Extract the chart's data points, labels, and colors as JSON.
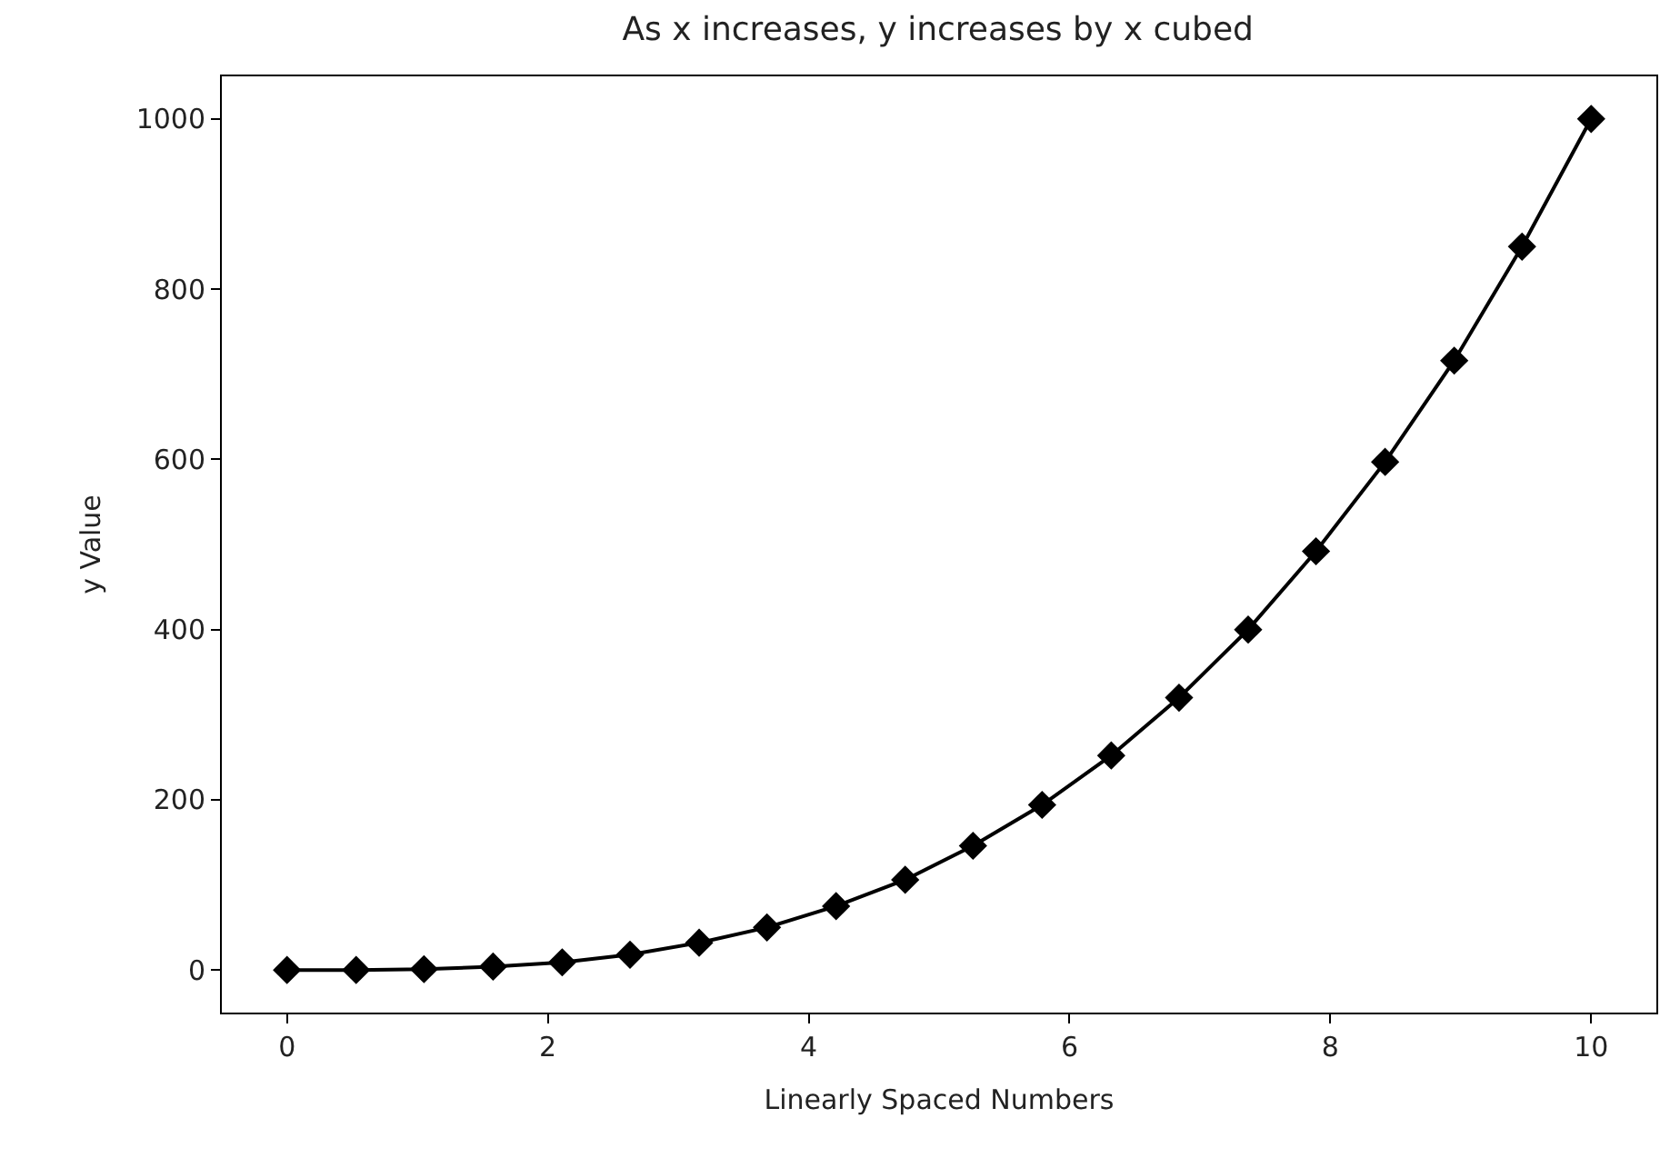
{
  "chart_data": {
    "type": "line",
    "title": "As x increases, y increases by x cubed",
    "xlabel": "Linearly Spaced Numbers",
    "ylabel": "y Value",
    "x": [
      0,
      0.53,
      1.05,
      1.58,
      2.11,
      2.63,
      3.16,
      3.68,
      4.21,
      4.74,
      5.26,
      5.79,
      6.32,
      6.84,
      7.37,
      7.89,
      8.42,
      8.95,
      9.47,
      10
    ],
    "series": [
      {
        "color": "#000000",
        "values": [
          0,
          0,
          1,
          4,
          9,
          18,
          32,
          50,
          75,
          106,
          146,
          194,
          252,
          320,
          400,
          492,
          597,
          716,
          850,
          1000
        ]
      }
    ],
    "marker": "diamond",
    "line_style": "solid",
    "legend": false,
    "xlim": [
      -0.5,
      10.5
    ],
    "xticks": [
      0,
      2,
      4,
      6,
      8,
      10
    ],
    "ylim": [
      -50,
      1050
    ],
    "yticks": [
      0,
      200,
      400,
      600,
      800,
      1000
    ]
  }
}
